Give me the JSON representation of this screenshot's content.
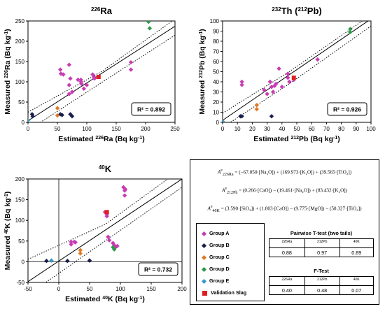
{
  "colors": {
    "group_a": "#c83cb4",
    "group_b": "#1a1f4e",
    "group_c": "#e07a26",
    "group_d": "#2e9a4a",
    "group_e": "#3a9ac8",
    "validation": "#e01e1e"
  },
  "chart_data": [
    {
      "type": "scatter",
      "title_prefix": "226",
      "title_main": "Ra",
      "xlabel": "Estimated 226Ra (Bq kg-1)",
      "ylabel": "Measured 226Ra (Bq kg-1)",
      "xlim": [
        0,
        250
      ],
      "ylim": [
        0,
        250
      ],
      "xticks": [
        0,
        50,
        100,
        150,
        200,
        250
      ],
      "yticks": [
        0,
        50,
        100,
        150,
        200,
        250
      ],
      "r2": "R² = 0.892",
      "fit_line": [
        [
          0,
          4
        ],
        [
          250,
          237
        ]
      ],
      "band_upper": [
        [
          0,
          25
        ],
        [
          125,
          125
        ],
        [
          250,
          255
        ]
      ],
      "band_lower": [
        [
          0,
          -20
        ],
        [
          125,
          98
        ],
        [
          250,
          215
        ]
      ],
      "series": [
        {
          "name": "Group A",
          "points": [
            [
              55,
              130
            ],
            [
              56,
              120
            ],
            [
              60,
              118
            ],
            [
              70,
              142
            ],
            [
              72,
              108
            ],
            [
              70,
              92
            ],
            [
              70,
              70
            ],
            [
              75,
              75
            ],
            [
              90,
              105
            ],
            [
              90,
              100
            ],
            [
              91,
              95
            ],
            [
              100,
              92
            ],
            [
              95,
              83
            ],
            [
              110,
              118
            ],
            [
              112,
              112
            ],
            [
              113,
              108
            ],
            [
              175,
              148
            ],
            [
              175,
              130
            ],
            [
              85,
              105
            ]
          ]
        },
        {
          "name": "Group B",
          "points": [
            [
              7,
              20
            ],
            [
              8,
              15
            ],
            [
              55,
              20
            ],
            [
              58,
              18
            ],
            [
              72,
              20
            ],
            [
              75,
              15
            ]
          ]
        },
        {
          "name": "Group C",
          "points": [
            [
              50,
              35
            ],
            [
              50,
              17
            ]
          ]
        },
        {
          "name": "Group D",
          "points": [
            [
              205,
              248
            ],
            [
              207,
              232
            ]
          ]
        },
        {
          "name": "Group E",
          "points": [
            [
              0,
              5
            ]
          ]
        },
        {
          "name": "Validation Slag",
          "points": [
            [
              120,
              112
            ]
          ]
        }
      ]
    },
    {
      "type": "scatter",
      "title_prefix": "232",
      "title_main": "Th (",
      "title_prefix2": "212",
      "title_main2": "Pb)",
      "xlabel": "Estimated 212Pb (Bq kg-1)",
      "ylabel": "Measured 212Pb (Bq kg-1)",
      "xlim": [
        0,
        100
      ],
      "ylim": [
        0,
        100
      ],
      "xticks": [
        0,
        10,
        20,
        30,
        40,
        50,
        60,
        70,
        80,
        90,
        100
      ],
      "yticks": [
        0,
        10,
        20,
        30,
        40,
        50,
        60,
        70,
        80,
        90,
        100
      ],
      "r2": "R² = 0.926",
      "fit_line": [
        [
          0,
          2
        ],
        [
          100,
          102
        ]
      ],
      "band_upper": [
        [
          0,
          9
        ],
        [
          45,
          50
        ],
        [
          100,
          106
        ]
      ],
      "band_lower": [
        [
          0,
          -5
        ],
        [
          45,
          38
        ],
        [
          100,
          95
        ]
      ],
      "series": [
        {
          "name": "Group A",
          "points": [
            [
              13,
              40
            ],
            [
              13,
              37
            ],
            [
              32,
              40
            ],
            [
              33,
              35
            ],
            [
              34,
              30
            ],
            [
              35,
              36
            ],
            [
              36,
              38
            ],
            [
              38,
              53
            ],
            [
              40,
              35
            ],
            [
              44,
              48
            ],
            [
              44,
              44
            ],
            [
              45,
              40
            ],
            [
              48,
              42
            ],
            [
              64,
              62
            ],
            [
              28,
              32
            ],
            [
              30,
              28
            ]
          ]
        },
        {
          "name": "Group B",
          "points": [
            [
              12,
              6
            ],
            [
              13,
              6
            ],
            [
              33,
              6
            ]
          ]
        },
        {
          "name": "Group C",
          "points": [
            [
              23,
              17
            ],
            [
              23,
              13
            ]
          ]
        },
        {
          "name": "Group D",
          "points": [
            [
              86,
              92
            ],
            [
              86,
              89
            ]
          ]
        },
        {
          "name": "Group E",
          "points": [
            [
              0,
              1
            ]
          ]
        },
        {
          "name": "Validation Slag",
          "points": [
            [
              48,
              44
            ]
          ]
        }
      ]
    },
    {
      "type": "scatter",
      "title_prefix": "40",
      "title_main": "K",
      "xlabel": "Estimated 40K (Bq kg-1)",
      "ylabel": "Measured 40K (Bq kg-1)",
      "xlim": [
        -50,
        200
      ],
      "ylim": [
        -50,
        200
      ],
      "xticks": [
        -50,
        0,
        50,
        100,
        150,
        200
      ],
      "yticks": [
        -50,
        0,
        50,
        100,
        150,
        200
      ],
      "r2": "R² = 0.732",
      "fit_line": [
        [
          -50,
          -48
        ],
        [
          200,
          200
        ]
      ],
      "band_upper": [
        [
          -50,
          6
        ],
        [
          75,
          90
        ],
        [
          200,
          225
        ]
      ],
      "band_lower": [
        [
          -50,
          -80
        ],
        [
          75,
          50
        ],
        [
          200,
          180
        ]
      ],
      "series": [
        {
          "name": "Group A",
          "points": [
            [
              20,
              42
            ],
            [
              20,
              48
            ],
            [
              25,
              48
            ],
            [
              27,
              47
            ],
            [
              75,
              120
            ],
            [
              77,
              118
            ],
            [
              78,
              115
            ],
            [
              78,
              110
            ],
            [
              80,
              60
            ],
            [
              82,
              52
            ],
            [
              88,
              45
            ],
            [
              90,
              40
            ],
            [
              92,
              35
            ],
            [
              95,
              38
            ],
            [
              105,
              180
            ],
            [
              107,
              172
            ],
            [
              108,
              175
            ],
            [
              107,
              160
            ]
          ]
        },
        {
          "name": "Group B",
          "points": [
            [
              -20,
              2
            ],
            [
              14,
              2
            ],
            [
              50,
              3
            ]
          ]
        },
        {
          "name": "Group C",
          "points": [
            [
              35,
              20
            ],
            [
              35,
              28
            ]
          ]
        },
        {
          "name": "Group D",
          "points": [
            [
              88,
              35
            ],
            [
              90,
              30
            ]
          ]
        },
        {
          "name": "Group E",
          "points": [
            [
              -12,
              3
            ]
          ]
        },
        {
          "name": "Validation Slag",
          "points": [
            [
              78,
              120
            ]
          ]
        }
      ]
    }
  ],
  "equations": {
    "ra_lhs": "A",
    "ra_sup": "e",
    "ra_sub": "226Ra",
    "ra_rhs": "= (−67.050·[Na₂O]) + (169.973·[K₂O]) + (39.565·[TiO₂])",
    "pb_lhs": "A",
    "pb_sup": "e",
    "pb_sub": "212Pb",
    "pb_rhs": "= (0.266·[CaO]) − (19.461·[Na₂O]) + (83.432·[K₂O])",
    "k_lhs": "A",
    "k_sup": "e",
    "k_sub": "40K",
    "k_rhs": "= (3.590·[SiO₂]) + (1.803·[CaO]) − (9.775·[MgO]) − (50.327·[TiO₂])"
  },
  "legend": [
    "Group A",
    "Group B",
    "Group C",
    "Group D",
    "Group E",
    "Validation Slag"
  ],
  "ttest": {
    "title": "Pairwise T-test (two tails)",
    "headers": [
      "226Ra",
      "212Pb",
      "40K"
    ],
    "values": [
      "0.88",
      "0.97",
      "0.89"
    ]
  },
  "ftest": {
    "title": "F-Test",
    "headers": [
      "226Ra",
      "212Pb",
      "40K"
    ],
    "values": [
      "0.40",
      "0.48",
      "0.07"
    ]
  }
}
